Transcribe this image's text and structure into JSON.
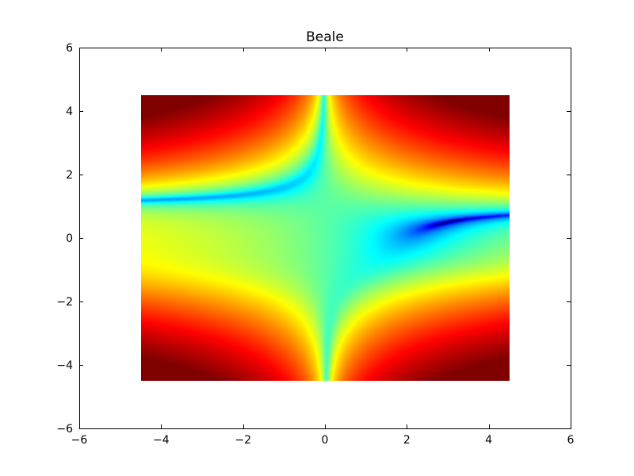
{
  "chart_data": {
    "type": "heatmap",
    "title": "Beale",
    "xlabel": "",
    "ylabel": "",
    "xlim": [
      -6,
      6
    ],
    "ylim": [
      -6,
      6
    ],
    "data_extent": {
      "x": [
        -4.5,
        4.5
      ],
      "y": [
        -4.5,
        4.5
      ]
    },
    "function": "beale",
    "colormap": "jet",
    "color_scale": "log",
    "grid": false,
    "x_ticks": [
      -6,
      -4,
      -2,
      0,
      2,
      4,
      6
    ],
    "y_ticks": [
      -6,
      -4,
      -2,
      0,
      2,
      4,
      6
    ],
    "x_tick_labels": [
      "−6",
      "−4",
      "−2",
      "0",
      "2",
      "4",
      "6"
    ],
    "y_tick_labels": [
      "−6",
      "−4",
      "−2",
      "0",
      "2",
      "4",
      "6"
    ]
  }
}
